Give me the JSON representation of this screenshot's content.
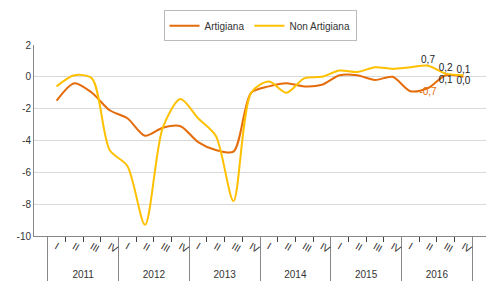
{
  "chart_data": {
    "type": "line",
    "categories": [
      [
        "2011",
        "I"
      ],
      [
        "2011",
        "II"
      ],
      [
        "2011",
        "III"
      ],
      [
        "2011",
        "IV"
      ],
      [
        "2012",
        "I"
      ],
      [
        "2012",
        "II"
      ],
      [
        "2012",
        "III"
      ],
      [
        "2012",
        "IV"
      ],
      [
        "2013",
        "I"
      ],
      [
        "2013",
        "II"
      ],
      [
        "2013",
        "III"
      ],
      [
        "2013",
        "IV"
      ],
      [
        "2014",
        "I"
      ],
      [
        "2014",
        "II"
      ],
      [
        "2014",
        "III"
      ],
      [
        "2014",
        "IV"
      ],
      [
        "2015",
        "I"
      ],
      [
        "2015",
        "II"
      ],
      [
        "2015",
        "III"
      ],
      [
        "2015",
        "IV"
      ],
      [
        "2016",
        "I"
      ],
      [
        "2016",
        "II"
      ],
      [
        "2016",
        "III"
      ],
      [
        "2016",
        "IV"
      ]
    ],
    "series": [
      {
        "name": "Artigiana",
        "color": "#e46c0a",
        "values": [
          -1.5,
          -0.4,
          -1.0,
          -2.1,
          -2.6,
          -3.7,
          -3.2,
          -3.1,
          -4.1,
          -4.6,
          -4.7,
          -1.0,
          -0.6,
          -0.4,
          -0.6,
          -0.5,
          0.1,
          0.1,
          -0.2,
          0.0,
          -0.9,
          -0.7,
          0.1,
          0.0
        ],
        "value_labels": [
          null,
          null,
          null,
          null,
          null,
          null,
          null,
          null,
          null,
          null,
          null,
          null,
          null,
          null,
          null,
          null,
          null,
          null,
          null,
          null,
          null,
          "-0,7",
          "0,1",
          "0,0"
        ]
      },
      {
        "name": "Non Artigiana",
        "color": "#ffc000",
        "values": [
          -0.6,
          0.1,
          -0.1,
          -4.6,
          -5.6,
          -9.3,
          -3.2,
          -1.4,
          -2.6,
          -3.7,
          -7.8,
          -1.0,
          -0.3,
          -1.0,
          -0.1,
          0.0,
          0.4,
          0.3,
          0.6,
          0.5,
          0.6,
          0.7,
          0.2,
          0.1
        ],
        "value_labels": [
          null,
          null,
          null,
          null,
          null,
          null,
          null,
          null,
          null,
          null,
          null,
          null,
          null,
          null,
          null,
          null,
          null,
          null,
          null,
          null,
          null,
          "0,7",
          "0,2",
          "0,1"
        ]
      }
    ],
    "ylim": [
      -10,
      2
    ],
    "yticks": [
      -10,
      -8,
      -6,
      -4,
      -2,
      0,
      2
    ],
    "grid": true,
    "legend": "top",
    "line_style": "smooth",
    "data_labels": true
  }
}
